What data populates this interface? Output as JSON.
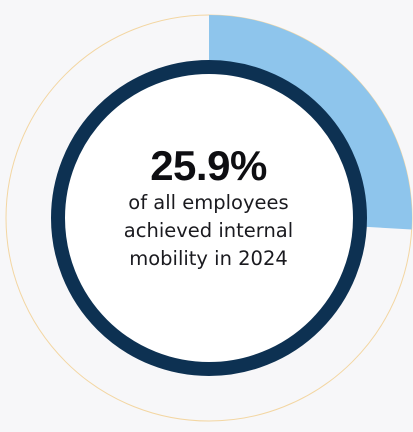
{
  "chart_data": {
    "type": "pie",
    "values": [
      25.9,
      74.1
    ],
    "units": "%",
    "highlight_color": "#8ec5ec",
    "ring_color": "#0d3152",
    "outer_outline_color": "#f3d6a2",
    "center_fill_color": "#ffffff",
    "background_color": "#f7f7f9",
    "value_label": "25.9%",
    "caption_lines": [
      "of all employees",
      "achieved internal",
      "mobility in 2024"
    ]
  }
}
